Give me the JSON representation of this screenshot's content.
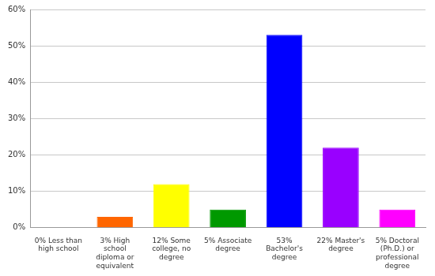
{
  "chart_data": {
    "type": "bar",
    "categories": [
      "0% Less than high school",
      "3% High school diploma or equivalent",
      "12% Some college, no degree",
      "5% Associate degree",
      "53% Bachelor's degree",
      "22% Master's degree",
      "5% Doctoral (Ph.D.) or professional degree"
    ],
    "values": [
      0,
      3,
      12,
      5,
      53,
      22,
      5
    ],
    "colors": [
      "#ff0000",
      "#ff6600",
      "#ffff00",
      "#009900",
      "#0000ff",
      "#9900ff",
      "#ff00ff"
    ],
    "ylim": [
      0,
      60
    ],
    "yticks": [
      {
        "value": 0,
        "label": "0%"
      },
      {
        "value": 10,
        "label": "10%"
      },
      {
        "value": 20,
        "label": "20%"
      },
      {
        "value": 30,
        "label": "30%"
      },
      {
        "value": 40,
        "label": "40%"
      },
      {
        "value": 50,
        "label": "50%"
      },
      {
        "value": 60,
        "label": "60%"
      }
    ],
    "grid": true
  }
}
